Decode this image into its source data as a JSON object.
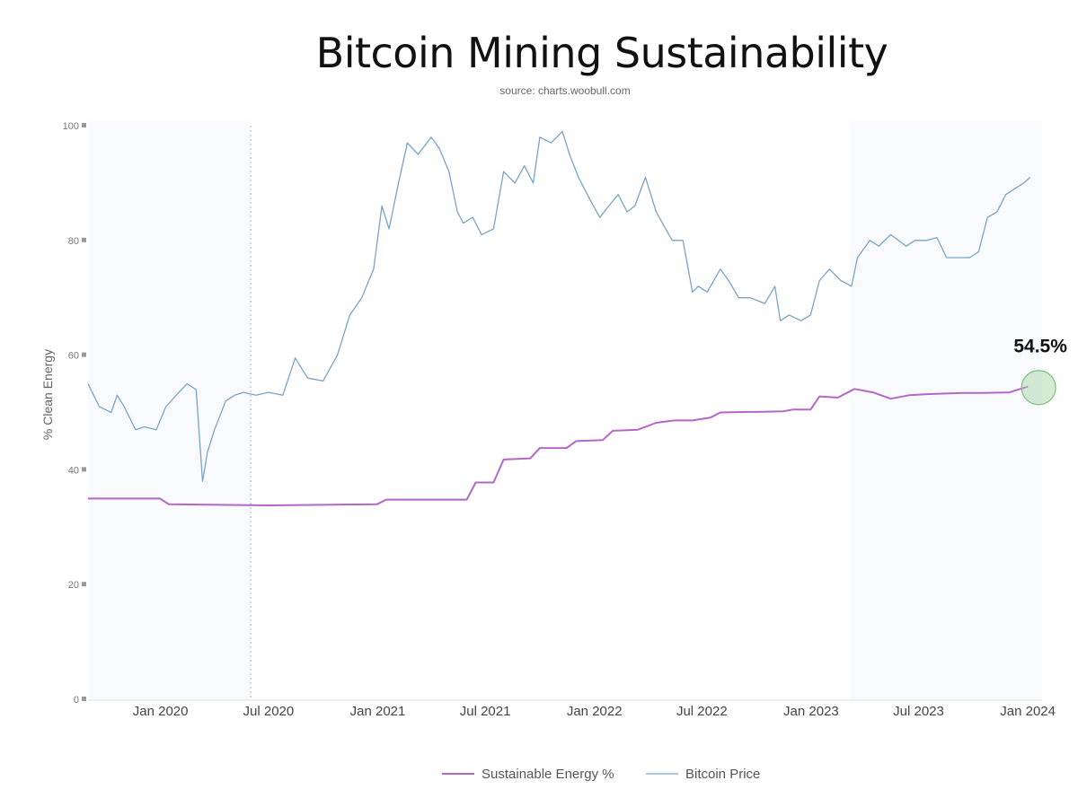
{
  "chart_data": {
    "type": "line",
    "title": "Bitcoin Mining Sustainability",
    "subtitle": "source: charts.woobull.com",
    "ylabel": "% Clean Energy",
    "xlabel": "",
    "ylim": [
      0,
      100
    ],
    "yticks": [
      0,
      20,
      40,
      60,
      80,
      100
    ],
    "x_tick_labels": [
      "Jan 2020",
      "Jul 2020",
      "Jan 2021",
      "Jul 2021",
      "Jan 2022",
      "Jul 2022",
      "Jan 2023",
      "Jul 2023",
      "Jan 2024"
    ],
    "xlim": [
      "2019-09-01",
      "2024-01-25"
    ],
    "highlight_regions": [
      {
        "from": "2019-09-01",
        "to": "2020-06-01"
      },
      {
        "from": "2023-03-07",
        "to": "2024-01-25"
      }
    ],
    "vertical_marker": "2020-06-01",
    "annotation": {
      "label": "54.5%",
      "x": "2024-01-01",
      "y": 54.5
    },
    "legend_position": "bottom",
    "series": [
      {
        "name": "Sustainable Energy %",
        "color": "#b467c7",
        "x": [
          "2019-09-01",
          "2019-12-31",
          "2020-01-15",
          "2020-07-01",
          "2020-12-31",
          "2021-01-15",
          "2021-05-31",
          "2021-06-15",
          "2021-07-15",
          "2021-08-01",
          "2021-09-15",
          "2021-10-01",
          "2021-11-15",
          "2021-12-01",
          "2022-01-15",
          "2022-02-01",
          "2022-03-15",
          "2022-04-15",
          "2022-05-15",
          "2022-06-15",
          "2022-07-15",
          "2022-08-01",
          "2022-09-15",
          "2022-10-01",
          "2022-11-15",
          "2022-12-01",
          "2022-12-31",
          "2023-01-15",
          "2023-02-15",
          "2023-03-15",
          "2023-04-15",
          "2023-05-15",
          "2023-06-15",
          "2023-07-15",
          "2023-08-15",
          "2023-09-15",
          "2023-10-15",
          "2023-12-01",
          "2024-01-01"
        ],
        "y": [
          35,
          35,
          34,
          33.8,
          34,
          34.8,
          34.8,
          37.8,
          37.8,
          41.8,
          42,
          43.8,
          43.8,
          45,
          45.2,
          46.8,
          47,
          48.2,
          48.6,
          48.6,
          49.1,
          50,
          50.1,
          50.1,
          50.2,
          50.5,
          50.5,
          52.8,
          52.6,
          54.1,
          53.5,
          52.4,
          53,
          53.2,
          53.3,
          53.4,
          53.4,
          53.5,
          54.5
        ]
      },
      {
        "name": "Bitcoin Price",
        "color": "#7ba3c6",
        "x": [
          "2019-09-01",
          "2019-09-20",
          "2019-10-10",
          "2019-10-20",
          "2019-11-01",
          "2019-11-20",
          "2019-12-05",
          "2019-12-25",
          "2020-01-10",
          "2020-02-01",
          "2020-02-15",
          "2020-03-01",
          "2020-03-12",
          "2020-03-20",
          "2020-04-01",
          "2020-04-20",
          "2020-05-05",
          "2020-05-20",
          "2020-06-10",
          "2020-07-01",
          "2020-07-25",
          "2020-08-15",
          "2020-09-05",
          "2020-10-01",
          "2020-10-25",
          "2020-11-15",
          "2020-12-05",
          "2020-12-25",
          "2021-01-08",
          "2021-01-20",
          "2021-02-05",
          "2021-02-20",
          "2021-03-10",
          "2021-04-01",
          "2021-04-15",
          "2021-05-01",
          "2021-05-15",
          "2021-05-25",
          "2021-06-10",
          "2021-06-25",
          "2021-07-15",
          "2021-08-01",
          "2021-08-20",
          "2021-09-05",
          "2021-09-20",
          "2021-10-01",
          "2021-10-20",
          "2021-11-08",
          "2021-11-20",
          "2021-12-05",
          "2021-12-25",
          "2022-01-10",
          "2022-01-25",
          "2022-02-10",
          "2022-02-25",
          "2022-03-10",
          "2022-03-28",
          "2022-04-15",
          "2022-05-01",
          "2022-05-12",
          "2022-05-30",
          "2022-06-15",
          "2022-06-25",
          "2022-07-10",
          "2022-08-01",
          "2022-08-15",
          "2022-09-01",
          "2022-09-20",
          "2022-10-15",
          "2022-11-01",
          "2022-11-10",
          "2022-11-25",
          "2022-12-15",
          "2022-12-31",
          "2023-01-15",
          "2023-02-01",
          "2023-02-20",
          "2023-03-10",
          "2023-03-20",
          "2023-04-10",
          "2023-04-25",
          "2023-05-15",
          "2023-06-10",
          "2023-06-25",
          "2023-07-15",
          "2023-08-01",
          "2023-08-17",
          "2023-09-05",
          "2023-09-25",
          "2023-10-10",
          "2023-10-25",
          "2023-11-10",
          "2023-11-25",
          "2023-12-10",
          "2023-12-25",
          "2024-01-05"
        ],
        "y": [
          55,
          51,
          50,
          53,
          51,
          47,
          47.5,
          47,
          51,
          53.5,
          55,
          54,
          38,
          43,
          47,
          52,
          53,
          53.5,
          53,
          53.5,
          53,
          59.5,
          56,
          55.5,
          60,
          67,
          70,
          75,
          86,
          82,
          90,
          97,
          95,
          98,
          96,
          92,
          85,
          83,
          84,
          81,
          82,
          92,
          90,
          93,
          90,
          98,
          97,
          99,
          95,
          91,
          87,
          84,
          86,
          88,
          85,
          86,
          91,
          85,
          82,
          80,
          80,
          71,
          72,
          71,
          75,
          73,
          70,
          70,
          69,
          72,
          66,
          67,
          66,
          67,
          73,
          75,
          73,
          72,
          77,
          80,
          79,
          81,
          79,
          80,
          80,
          80.5,
          77,
          77,
          77,
          78,
          84,
          85,
          88,
          89,
          90,
          91
        ]
      }
    ]
  }
}
